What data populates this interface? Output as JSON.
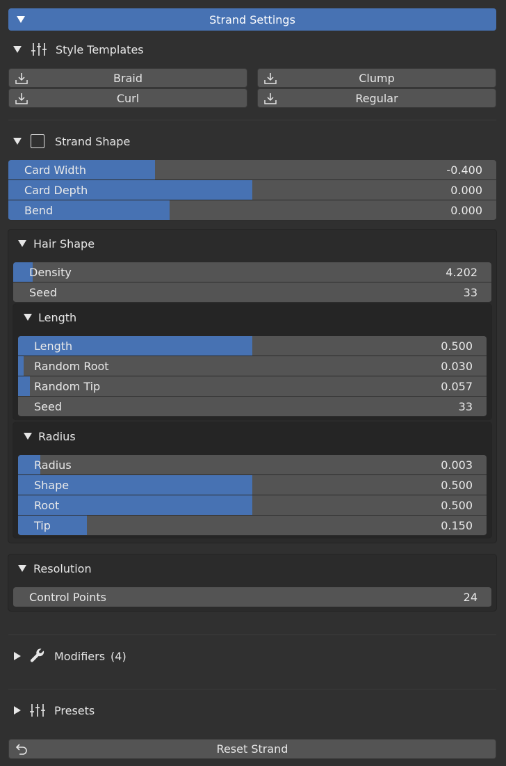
{
  "header": {
    "title": "Strand Settings"
  },
  "style_templates": {
    "title": "Style Templates",
    "buttons": [
      "Braid",
      "Clump",
      "Curl",
      "Regular"
    ]
  },
  "strand_shape": {
    "title": "Strand Shape",
    "sliders": [
      {
        "label": "Card Width",
        "value": "-0.400",
        "fill": 0.3
      },
      {
        "label": "Card Depth",
        "value": "0.000",
        "fill": 0.5
      },
      {
        "label": "Bend",
        "value": "0.000",
        "fill": 0.33
      }
    ]
  },
  "hair_shape": {
    "title": "Hair Shape",
    "sliders": [
      {
        "label": "Density",
        "value": "4.202",
        "fill": 0.04
      },
      {
        "label": "Seed",
        "value": "33",
        "fill": 0
      }
    ],
    "length": {
      "title": "Length",
      "sliders": [
        {
          "label": "Length",
          "value": "0.500",
          "fill": 0.5
        },
        {
          "label": "Random Root",
          "value": "0.030",
          "fill": 0.012
        },
        {
          "label": "Random Tip",
          "value": "0.057",
          "fill": 0.025
        },
        {
          "label": "Seed",
          "value": "33",
          "fill": 0
        }
      ]
    },
    "radius": {
      "title": "Radius",
      "sliders": [
        {
          "label": "Radius",
          "value": "0.003",
          "fill": 0.048
        },
        {
          "label": "Shape",
          "value": "0.500",
          "fill": 0.5
        },
        {
          "label": "Root",
          "value": "0.500",
          "fill": 0.5
        },
        {
          "label": "Tip",
          "value": "0.150",
          "fill": 0.147
        }
      ]
    }
  },
  "resolution": {
    "title": "Resolution",
    "control_points_label": "Control Points",
    "control_points_value": "24"
  },
  "modifiers": {
    "title": "Modifiers",
    "count": "(4)"
  },
  "presets": {
    "title": "Presets"
  },
  "reset": {
    "label": "Reset Strand"
  },
  "colors": {
    "accent": "#4772b3",
    "background": "#303030",
    "field": "#545454"
  }
}
